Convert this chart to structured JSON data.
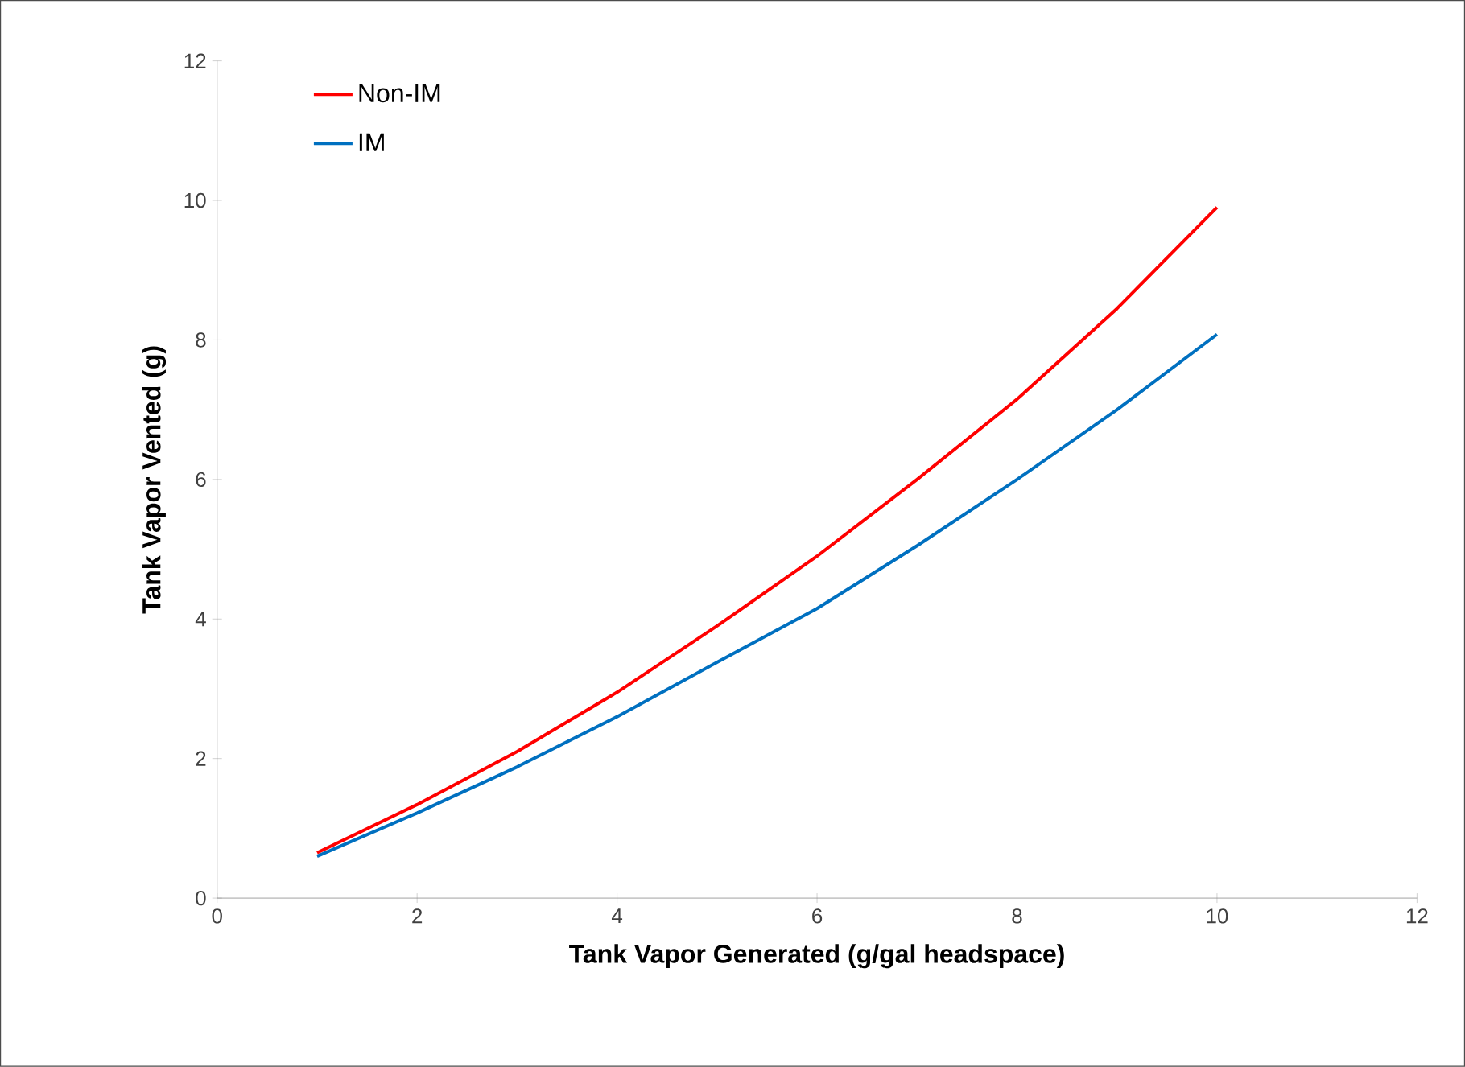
{
  "chart_data": {
    "type": "line",
    "xlabel": "Tank Vapor Generated (g/gal headspace)",
    "ylabel": "Tank Vapor Vented (g)",
    "x": [
      1,
      2,
      3,
      4,
      5,
      6,
      7,
      8,
      9,
      10
    ],
    "series": [
      {
        "name": "Non-IM",
        "color": "#ff0000",
        "values": [
          0.65,
          1.34,
          2.1,
          2.95,
          3.9,
          4.9,
          6.0,
          7.15,
          8.45,
          9.9
        ]
      },
      {
        "name": "IM",
        "color": "#0070c0",
        "values": [
          0.6,
          1.22,
          1.88,
          2.6,
          3.38,
          4.15,
          5.05,
          6.0,
          7.0,
          8.08
        ]
      }
    ],
    "xlim": [
      0,
      12
    ],
    "ylim": [
      0,
      12
    ],
    "xticks": [
      0,
      2,
      4,
      6,
      8,
      10,
      12
    ],
    "yticks": [
      0,
      2,
      4,
      6,
      8,
      10,
      12
    ],
    "grid": false,
    "legend": "top left",
    "marker": "none",
    "line_style": "solid"
  }
}
